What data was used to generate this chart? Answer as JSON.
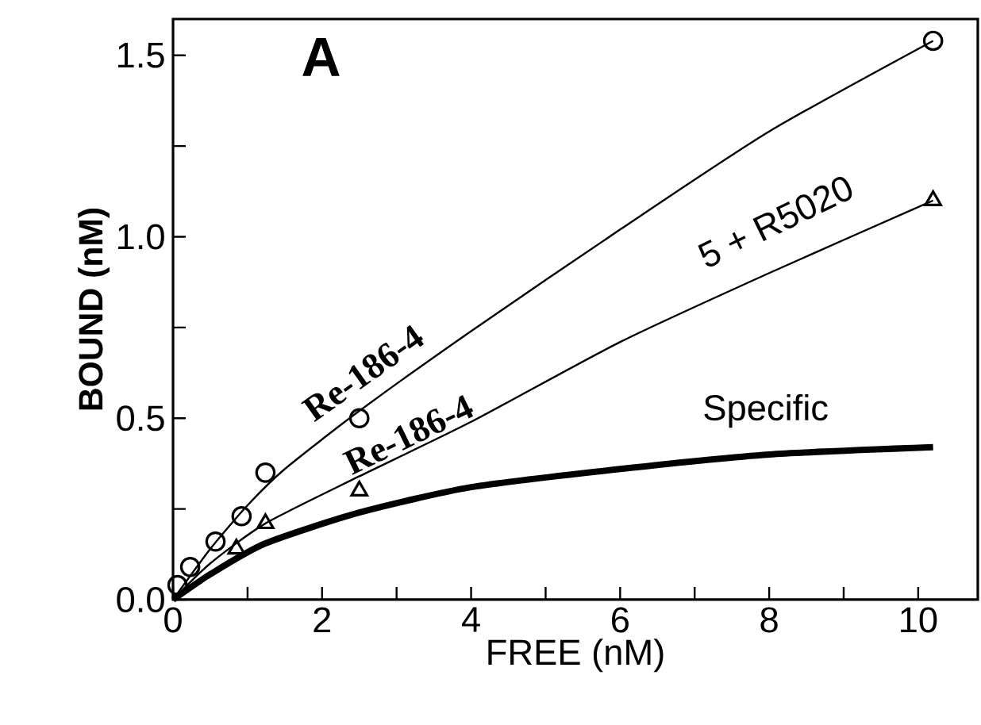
{
  "chart_data": {
    "type": "scatter",
    "xlabel": "FREE  (nM)",
    "ylabel": "BOUND (nM)",
    "xlim": [
      0,
      10.8
    ],
    "ylim": [
      0,
      1.6
    ],
    "xticks": [
      0,
      {
        "value": 1,
        "label": null
      },
      2,
      {
        "value": 3,
        "label": null
      },
      4,
      {
        "value": 5,
        "label": null
      },
      6,
      {
        "value": 7,
        "label": null
      },
      8,
      {
        "value": 9,
        "label": null
      },
      10
    ],
    "yticks": [
      {
        "value": 0,
        "label": "0.0"
      },
      {
        "value": 0.25,
        "label": null
      },
      0.5,
      {
        "value": 0.75,
        "label": null
      },
      {
        "value": 1,
        "label": "1.0"
      },
      {
        "value": 1.25,
        "label": null
      },
      1.5
    ],
    "grid": false,
    "legend": false,
    "annotations": [
      "A",
      "5 + R5020"
    ],
    "series": [
      {
        "marker": "circle",
        "color": "#000000",
        "x": [
          0.06,
          0.23,
          0.57,
          0.92,
          1.24,
          2.5,
          10.2
        ],
        "values": [
          0.04,
          0.09,
          0.16,
          0.23,
          0.35,
          0.5,
          1.54
        ]
      },
      {
        "marker": "triangle",
        "color": "#000000",
        "x": [
          0.85,
          1.24,
          2.5,
          10.2
        ],
        "values": [
          0.14,
          0.21,
          0.3,
          1.1
        ]
      },
      {
        "type": "line",
        "name": "Re-186-4",
        "color": "#000000",
        "marker": "none",
        "x": [
          0,
          0.5,
          1,
          1.5,
          2.5,
          4,
          6,
          8,
          10.2
        ],
        "values": [
          0,
          0.14,
          0.26,
          0.36,
          0.52,
          0.74,
          1.02,
          1.29,
          1.54
        ]
      },
      {
        "type": "line",
        "name": "Re-186-4",
        "color": "#000000",
        "marker": "none",
        "x": [
          0,
          0.5,
          1.24,
          2.5,
          4,
          6,
          8,
          10.2
        ],
        "values": [
          0,
          0.1,
          0.21,
          0.34,
          0.49,
          0.71,
          0.9,
          1.1
        ]
      },
      {
        "type": "line",
        "name": "Specific",
        "color": "#000000",
        "marker": "none",
        "x": [
          0,
          0.5,
          1.24,
          2.5,
          4,
          6,
          8,
          10.2
        ],
        "values": [
          0,
          0.07,
          0.155,
          0.24,
          0.31,
          0.36,
          0.4,
          0.42
        ]
      }
    ]
  }
}
